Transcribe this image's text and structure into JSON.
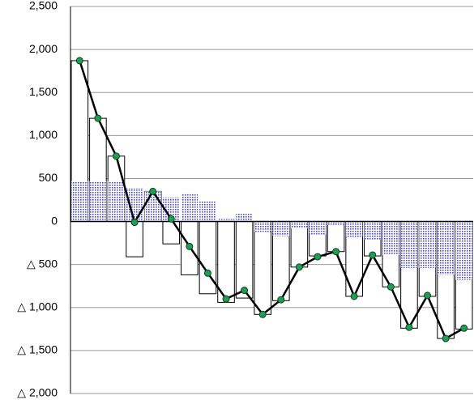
{
  "chart_data": {
    "type": "bar",
    "categories": [
      null,
      null,
      null,
      null,
      null,
      null,
      null,
      null,
      null,
      null,
      null,
      null,
      null,
      null,
      null,
      null,
      null,
      null,
      null,
      null,
      null,
      null
    ],
    "series": [
      {
        "type": "bar",
        "color": "#ffffff",
        "values": [
          1870,
          1200,
          760,
          -410,
          350,
          -260,
          -620,
          -840,
          -940,
          -890,
          -1080,
          -920,
          -530,
          -400,
          -350,
          -870,
          -400,
          -760,
          -1240,
          -870,
          -1360,
          -1250
        ]
      },
      {
        "type": "bar",
        "color": "#4a4ae0",
        "pattern": "dots",
        "values": [
          470,
          470,
          470,
          390,
          350,
          280,
          330,
          240,
          30,
          90,
          -120,
          -170,
          -80,
          -150,
          -40,
          -180,
          -210,
          -390,
          -540,
          -540,
          -620,
          -680
        ]
      },
      {
        "type": "line",
        "color": "#1e9e50",
        "values": [
          1870,
          1200,
          760,
          -10,
          350,
          30,
          -290,
          -600,
          -900,
          -800,
          -1080,
          -910,
          -530,
          -410,
          -350,
          -870,
          -390,
          -760,
          -1230,
          -860,
          -1360,
          -1240
        ]
      }
    ],
    "ylim": [
      -2000,
      2500
    ],
    "yticks": [
      {
        "value": -2000,
        "label": "△ 2,000"
      },
      {
        "value": -1500,
        "label": "△ 1,500"
      },
      {
        "value": -1000,
        "label": "△ 1,000"
      },
      {
        "value": -500,
        "label": "△ 500"
      },
      0,
      500,
      {
        "value": 1000,
        "label": "1,000"
      },
      {
        "value": 1500,
        "label": "1,500"
      },
      {
        "value": 2000,
        "label": "2,000"
      },
      {
        "value": 2500,
        "label": "2,500"
      }
    ],
    "grid": true
  }
}
